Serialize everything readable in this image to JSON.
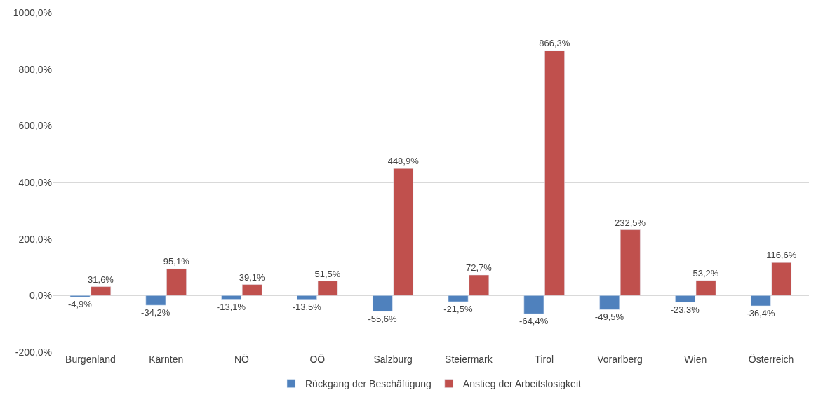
{
  "chart_data": {
    "type": "bar",
    "categories": [
      "Burgenland",
      "Kärnten",
      "NÖ",
      "OÖ",
      "Salzburg",
      "Steiermark",
      "Tirol",
      "Vorarlberg",
      "Wien",
      "Österreich"
    ],
    "series": [
      {
        "name": "Rückgang der Beschäftigung",
        "color": "#4f81bd",
        "values": [
          -4.9,
          -34.2,
          -13.1,
          -13.5,
          -55.6,
          -21.5,
          -64.4,
          -49.5,
          -23.3,
          -36.4
        ],
        "value_labels": [
          "-4,9%",
          "-34,2%",
          "-13,1%",
          "-13,5%",
          "-55,6%",
          "-21,5%",
          "-64,4%",
          "-49,5%",
          "-23,3%",
          "-36,4%"
        ]
      },
      {
        "name": "Anstieg der Arbeitslosigkeit",
        "color": "#c0504d",
        "values": [
          31.6,
          95.1,
          39.1,
          51.5,
          448.9,
          72.7,
          866.3,
          232.5,
          53.2,
          116.6
        ],
        "value_labels": [
          "31,6%",
          "95,1%",
          "39,1%",
          "51,5%",
          "448,9%",
          "72,7%",
          "866,3%",
          "232,5%",
          "53,2%",
          "116,6%"
        ]
      }
    ],
    "ylim": [
      -200,
      1000
    ],
    "yticks": [
      {
        "value": -200,
        "label": "-200,0%"
      },
      {
        "value": 0,
        "label": "0,0%"
      },
      {
        "value": 200,
        "label": "200,0%"
      },
      {
        "value": 400,
        "label": "400,0%"
      },
      {
        "value": 600,
        "label": "600,0%"
      },
      {
        "value": 800,
        "label": "800,0%"
      },
      {
        "value": 1000,
        "label": "1000,0%"
      }
    ],
    "grid": "y",
    "legend": "bottom"
  }
}
